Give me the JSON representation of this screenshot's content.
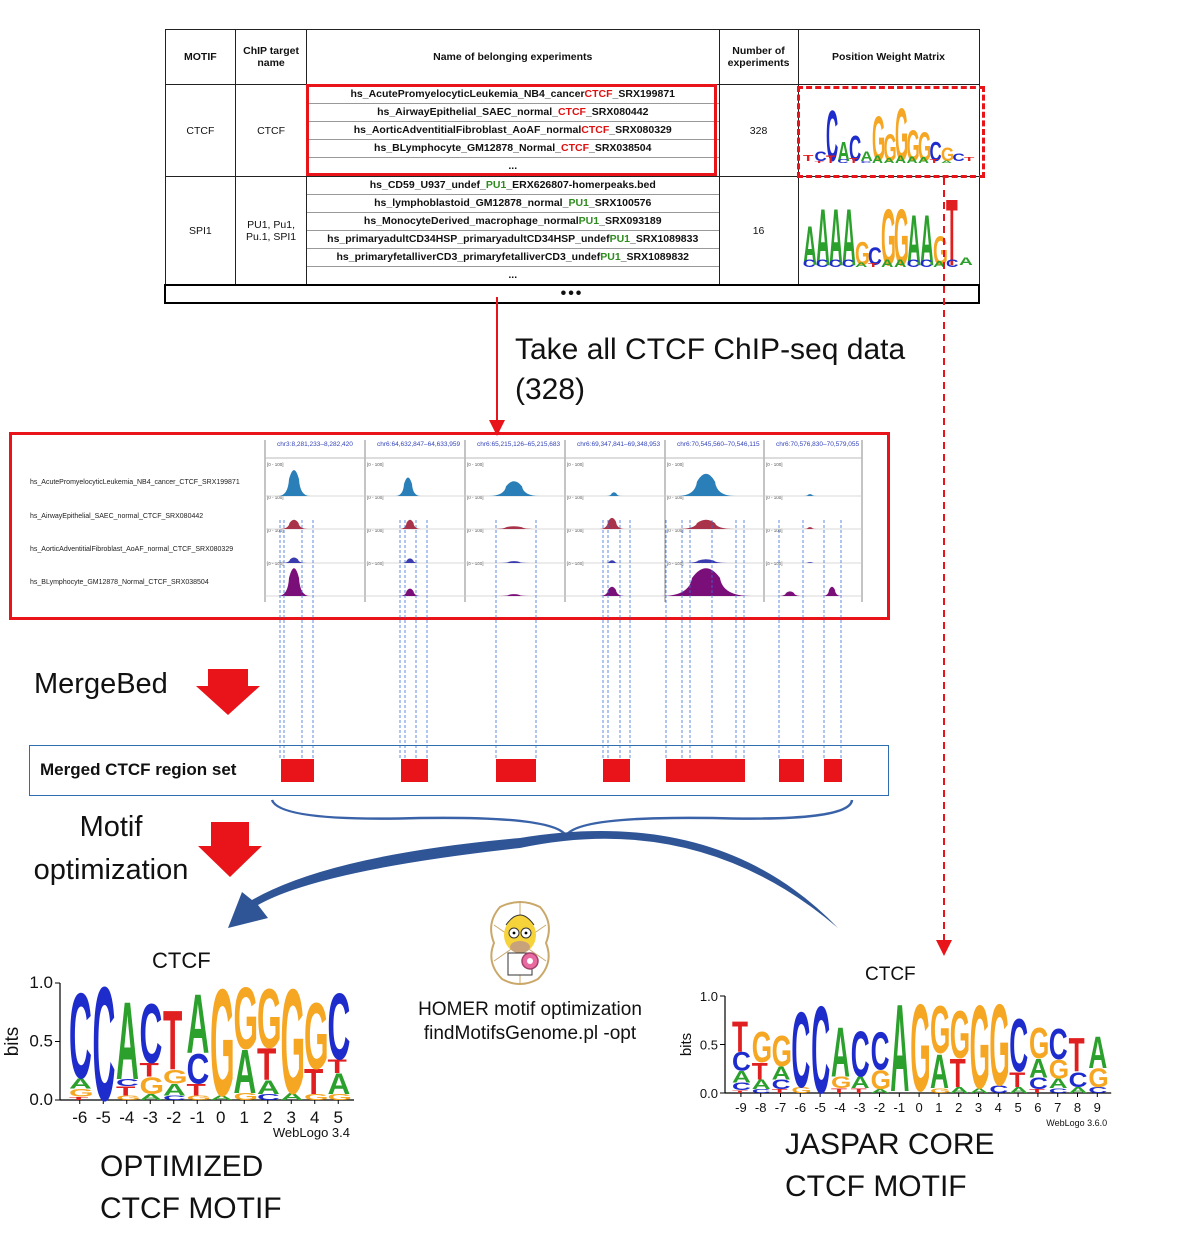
{
  "table": {
    "headers": {
      "motif": "MOTIF",
      "chip_target": "ChIP target name",
      "experiments": "Name of belonging experiments",
      "count": "Number of experiments",
      "pwm": "Position Weight Matrix"
    },
    "rows": [
      {
        "motif": "CTCF",
        "target": "CTCF",
        "count": "328",
        "experiments": [
          {
            "pre": "hs_AcutePromyelocyticLeukemia_NB4_cancer",
            "hl": "CTCF",
            "post": "_SRX199871"
          },
          {
            "pre": "hs_AirwayEpithelial_SAEC_normal_",
            "hl": "CTCF",
            "post": "_SRX080442"
          },
          {
            "pre": "hs_AorticAdventitialFibroblast_AoAF_normal",
            "hl": "CTCF",
            "post": "_SRX080329"
          },
          {
            "pre": "hs_BLymphocyte_GM12878_Normal_",
            "hl": "CTCF",
            "post": "_SRX038504"
          }
        ],
        "ellipsis": "..."
      },
      {
        "motif": "SPI1",
        "target": "PU1, Pu1, Pu.1, SPI1",
        "count": "16",
        "experiments": [
          {
            "pre": "hs_CD59_U937_undef_",
            "hl": "PU1",
            "post": "_ERX626807-homerpeaks.bed"
          },
          {
            "pre": "hs_lymphoblastoid_GM12878_normal_",
            "hl": "PU1",
            "post": "_SRX100576"
          },
          {
            "pre": "hs_MonocyteDerived_macrophage_normal",
            "hl": "PU1",
            "post": "_SRX093189"
          },
          {
            "pre": "hs_primaryadultCD34HSP_primaryadultCD34HSP_undef",
            "hl": "PU1",
            "post": "_SRX1089833"
          },
          {
            "pre": "hs_primaryfetalliverCD3_primaryfetalliverCD3_undef",
            "hl": "PU1",
            "post": "_SRX1089832"
          }
        ],
        "ellipsis": "..."
      }
    ],
    "more_rows": "•••"
  },
  "step1_text": "Take all CTCF ChIP-seq data (328)",
  "tracks": {
    "labels": [
      "hs_AcutePromyelocyticLeukemia_NB4_cancer_CTCF_SRX199871",
      "hs_AirwayEpithelial_SAEC_normal_CTCF_SRX080442",
      "hs_AorticAdventitialFibroblast_AoAF_normal_CTCF_SRX080329",
      "hs_BLymphocyte_GM12878_Normal_CTCF_SRX038504"
    ],
    "loci": [
      "chr3:8,281,233–8,282,420",
      "chr6:64,632,847–64,633,959",
      "chr6:65,215,126–65,215,683",
      "chr6:69,347,841–69,348,953",
      "chr6:70,545,560–70,546,115",
      "chr6:70,576,830–70,579,055"
    ],
    "scale": "[0 - 100]",
    "colors": [
      "#2a7fb8",
      "#a8334a",
      "#3b3bb0",
      "#7a0f7a"
    ]
  },
  "mergebed_label": "MergeBed",
  "merged_label": "Merged CTCF region set",
  "motif_opt_label": "Motif optimization",
  "homer": {
    "line1": "HOMER motif optimization",
    "line2": "findMotifsGenome.pl -opt"
  },
  "optimized_logo": {
    "title": "CTCF",
    "caption": "OPTIMIZED CTCF MOTIF",
    "y_label": "bits",
    "y_ticks": [
      "1.0",
      "0.5",
      "0.0"
    ],
    "x_ticks": [
      "-6",
      "-5",
      "-4",
      "-3",
      "-2",
      "-1",
      "0",
      "1",
      "2",
      "3",
      "4",
      "5"
    ],
    "credit": "WebLogo 3.4",
    "sequence": "CCACTAGGGGGC"
  },
  "jaspar_logo": {
    "title": "CTCF",
    "caption": "JASPAR CORE CTCF MOTIF",
    "y_label": "bits",
    "y_ticks": [
      "1.0",
      "0.5",
      "0.0"
    ],
    "x_ticks": [
      "-9",
      "-8",
      "-7",
      "-6",
      "-5",
      "-4",
      "-3",
      "-2",
      "-1",
      "0",
      "1",
      "2",
      "3",
      "4",
      "5",
      "6",
      "7",
      "8",
      "9"
    ],
    "credit": "WebLogo 3.6.0",
    "sequence": "TGGCCACCAGGGGGCGCTA"
  },
  "colors": {
    "A": "#2ca02c",
    "C": "#1f2ccc",
    "G": "#f5a623",
    "T": "#e02020",
    "accent_red": "#e8141a",
    "merged_border": "#2e6eb0",
    "brace": "#3a62a8"
  }
}
